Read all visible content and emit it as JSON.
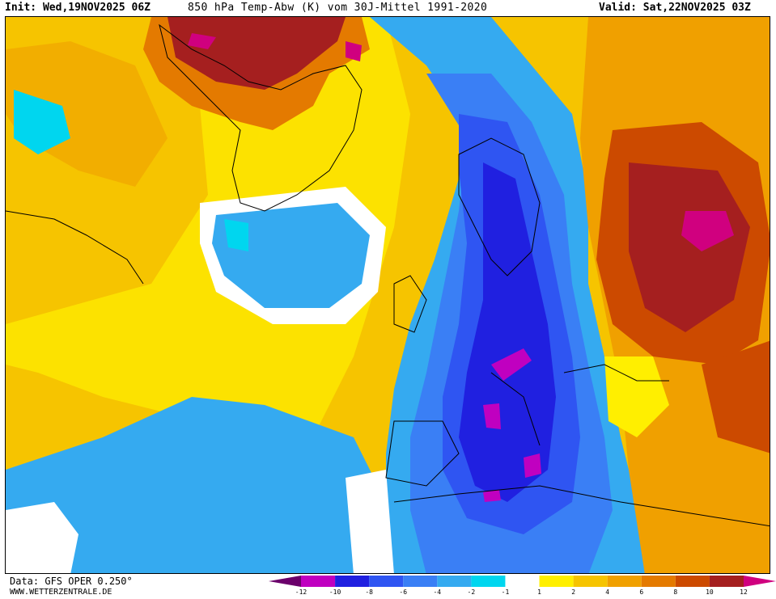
{
  "header": {
    "init": "Init: Wed,19NOV2025 06Z",
    "title": "850 hPa Temp-Abw (K) vom 30J-Mittel 1991-2020",
    "valid": "Valid: Sat,22NOV2025 03Z"
  },
  "footer": {
    "data_source": "Data: GFS OPER 0.250°",
    "website": "WWW.WETTERZENTRALE.DE"
  },
  "legend": {
    "tick_labels": [
      "-12",
      "-10",
      "-8",
      "-6",
      "-4",
      "-2",
      "-1",
      "1",
      "2",
      "4",
      "6",
      "8",
      "10",
      "12"
    ],
    "colors": {
      "below_-12": "#6b006b",
      "-12_-10": "#c000c0",
      "-10_-8": "#2020e0",
      "-8_-6": "#2f55f2",
      "-6_-4": "#3a7ff5",
      "-4_-2": "#35aaf0",
      "-2_-1": "#00d6ef",
      "-1_1": "#ffffff",
      "1_2": "#ffef00",
      "2_4": "#f6c400",
      "4_6": "#f0a000",
      "6_8": "#e47a00",
      "8_10": "#cc4a00",
      "10_12": "#a51f1f",
      "above_12": "#d0007f"
    }
  },
  "map": {
    "region": "North Atlantic and Europe",
    "variable": "850 hPa temperature anomaly"
  }
}
